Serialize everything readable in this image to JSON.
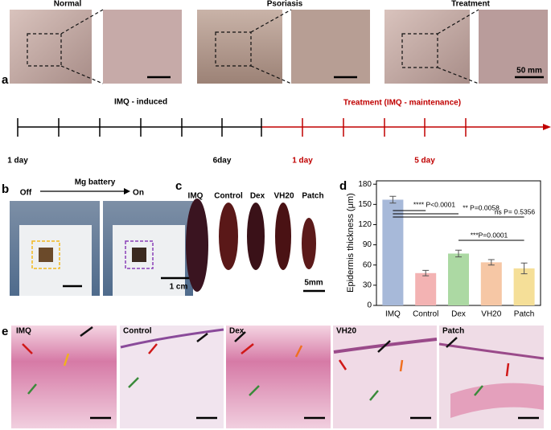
{
  "panel_labels": [
    "a",
    "b",
    "c",
    "d",
    "e"
  ],
  "panel_a": {
    "titles": [
      "Normal",
      "Psoriasis",
      "Treatment"
    ],
    "scale_label": "50 mm",
    "phase_labels": [
      "IMQ - induced",
      "Treatment (IMQ - maintenance)"
    ],
    "day_labels": [
      "1 day",
      "6day",
      "1 day",
      "5 day"
    ]
  },
  "panel_b": {
    "title": "Mg battery",
    "off": "Off",
    "on": "On",
    "scale_label": "1 cm"
  },
  "panel_c": {
    "labels": [
      "IMQ",
      "Control",
      "Dex",
      "VH20",
      "Patch"
    ],
    "scale_label": "5mm"
  },
  "chart_data": {
    "type": "bar",
    "y_label": "Epidermis thickness (μm)",
    "categories": [
      "IMQ",
      "Control",
      "Dex",
      "VH20",
      "Patch"
    ],
    "values": [
      157,
      48,
      77,
      64,
      55
    ],
    "errors": [
      5,
      4,
      5,
      4,
      8
    ],
    "colors": [
      "#a7b9d9",
      "#f3b3b3",
      "#acd9a3",
      "#f6c7a5",
      "#f5df98"
    ],
    "ylim": [
      0,
      185
    ],
    "yticks": [
      0,
      30,
      60,
      90,
      120,
      150,
      180
    ],
    "annotations": [
      "**** P<0.0001",
      "** P=0.0058",
      "ns P= 0.5356",
      "***P=0.0001"
    ]
  },
  "panel_e": {
    "labels": [
      "IMQ",
      "Control",
      "Dex",
      "VH20",
      "Patch"
    ]
  }
}
